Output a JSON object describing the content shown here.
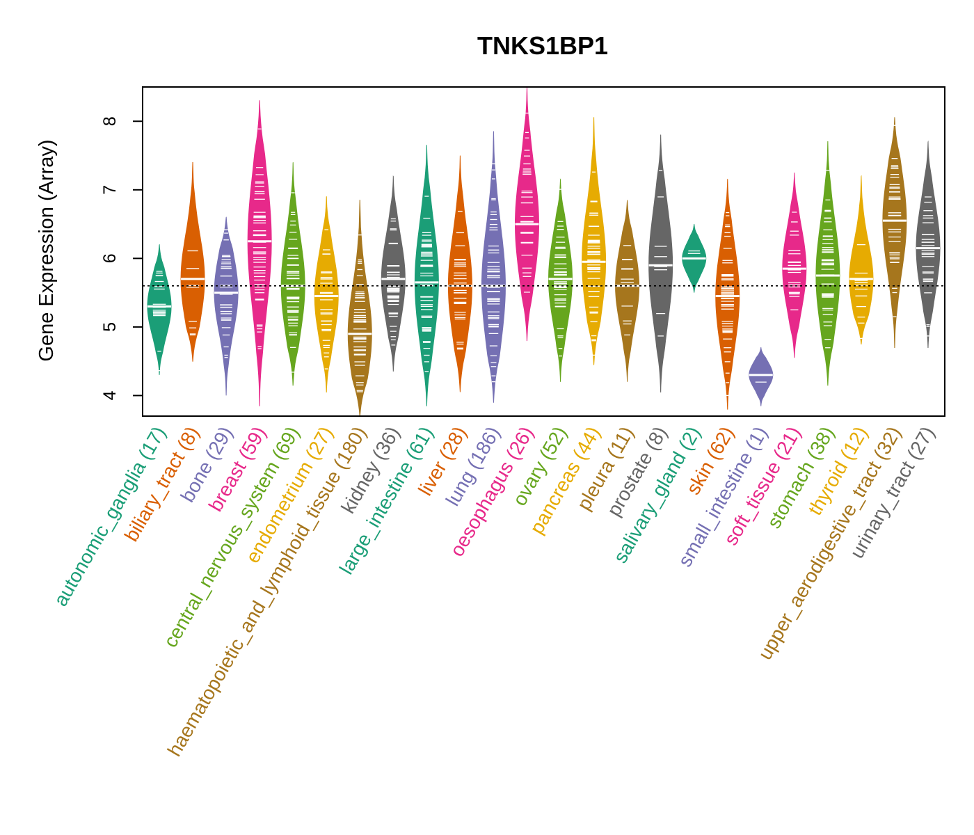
{
  "chart_data": {
    "type": "violin",
    "title": "TNKS1BP1",
    "ylabel": "Gene Expression (Array)",
    "ylim": [
      3.7,
      8.5
    ],
    "yticks": [
      4,
      5,
      6,
      7,
      8
    ],
    "reference_line": 5.6,
    "grid": false,
    "categories": [
      {
        "name": "autonomic_ganglia",
        "n": 17,
        "label": "autonomic_ganglia (17)",
        "color": "#1B9E77",
        "min": 4.3,
        "max": 6.2,
        "median": 5.3
      },
      {
        "name": "biliary_tract",
        "n": 8,
        "label": "biliary_tract (8)",
        "color": "#D95F02",
        "min": 4.5,
        "max": 7.4,
        "median": 5.7
      },
      {
        "name": "bone",
        "n": 29,
        "label": "bone (29)",
        "color": "#7570B3",
        "min": 4.0,
        "max": 6.6,
        "median": 5.5
      },
      {
        "name": "breast",
        "n": 59,
        "label": "breast (59)",
        "color": "#E7298A",
        "min": 3.85,
        "max": 8.3,
        "median": 6.25
      },
      {
        "name": "central_nervous_system",
        "n": 69,
        "label": "central_nervous_system (69)",
        "color": "#66A61E",
        "min": 4.15,
        "max": 7.4,
        "median": 5.6
      },
      {
        "name": "endometrium",
        "n": 27,
        "label": "endometrium (27)",
        "color": "#E6AB02",
        "min": 4.05,
        "max": 6.9,
        "median": 5.45
      },
      {
        "name": "haematopoietic_and_lymphoid_tissue",
        "n": 180,
        "label": "haematopoietic_and_lymphoid_tissue (180)",
        "color": "#A6761D",
        "min": 3.7,
        "max": 6.85,
        "median": 4.9
      },
      {
        "name": "kidney",
        "n": 36,
        "label": "kidney (36)",
        "color": "#666666",
        "min": 4.35,
        "max": 7.2,
        "median": 5.7
      },
      {
        "name": "large_intestine",
        "n": 61,
        "label": "large_intestine (61)",
        "color": "#1B9E77",
        "min": 3.85,
        "max": 7.65,
        "median": 5.65
      },
      {
        "name": "liver",
        "n": 28,
        "label": "liver (28)",
        "color": "#D95F02",
        "min": 4.05,
        "max": 7.5,
        "median": 5.6
      },
      {
        "name": "lung",
        "n": 186,
        "label": "lung (186)",
        "color": "#7570B3",
        "min": 3.9,
        "max": 7.85,
        "median": 5.6
      },
      {
        "name": "oesophagus",
        "n": 26,
        "label": "oesophagus (26)",
        "color": "#E7298A",
        "min": 4.8,
        "max": 8.5,
        "median": 6.5
      },
      {
        "name": "ovary",
        "n": 52,
        "label": "ovary (52)",
        "color": "#66A61E",
        "min": 4.2,
        "max": 7.15,
        "median": 5.7
      },
      {
        "name": "pancreas",
        "n": 44,
        "label": "pancreas (44)",
        "color": "#E6AB02",
        "min": 4.45,
        "max": 8.05,
        "median": 5.95
      },
      {
        "name": "pleura",
        "n": 11,
        "label": "pleura (11)",
        "color": "#A6761D",
        "min": 4.2,
        "max": 6.85,
        "median": 5.6
      },
      {
        "name": "prostate",
        "n": 8,
        "label": "prostate (8)",
        "color": "#666666",
        "min": 4.05,
        "max": 7.8,
        "median": 5.9
      },
      {
        "name": "salivary_gland",
        "n": 2,
        "label": "salivary_gland (2)",
        "color": "#1B9E77",
        "min": 5.5,
        "max": 6.5,
        "median": 6.0
      },
      {
        "name": "skin",
        "n": 62,
        "label": "skin (62)",
        "color": "#D95F02",
        "min": 3.8,
        "max": 7.15,
        "median": 5.45
      },
      {
        "name": "small_intestine",
        "n": 1,
        "label": "small_intestine (1)",
        "color": "#7570B3",
        "min": 3.85,
        "max": 4.7,
        "median": 4.3
      },
      {
        "name": "soft_tissue",
        "n": 21,
        "label": "soft_tissue (21)",
        "color": "#E7298A",
        "min": 4.55,
        "max": 7.25,
        "median": 5.85
      },
      {
        "name": "stomach",
        "n": 38,
        "label": "stomach (38)",
        "color": "#66A61E",
        "min": 4.15,
        "max": 7.7,
        "median": 5.75
      },
      {
        "name": "thyroid",
        "n": 12,
        "label": "thyroid (12)",
        "color": "#E6AB02",
        "min": 4.75,
        "max": 7.2,
        "median": 5.7
      },
      {
        "name": "upper_aerodigestive_tract",
        "n": 32,
        "label": "upper_aerodigestive_tract (32)",
        "color": "#A6761D",
        "min": 4.7,
        "max": 8.05,
        "median": 6.55
      },
      {
        "name": "urinary_tract",
        "n": 27,
        "label": "urinary_tract (27)",
        "color": "#666666",
        "min": 4.7,
        "max": 7.7,
        "median": 6.15
      }
    ]
  }
}
